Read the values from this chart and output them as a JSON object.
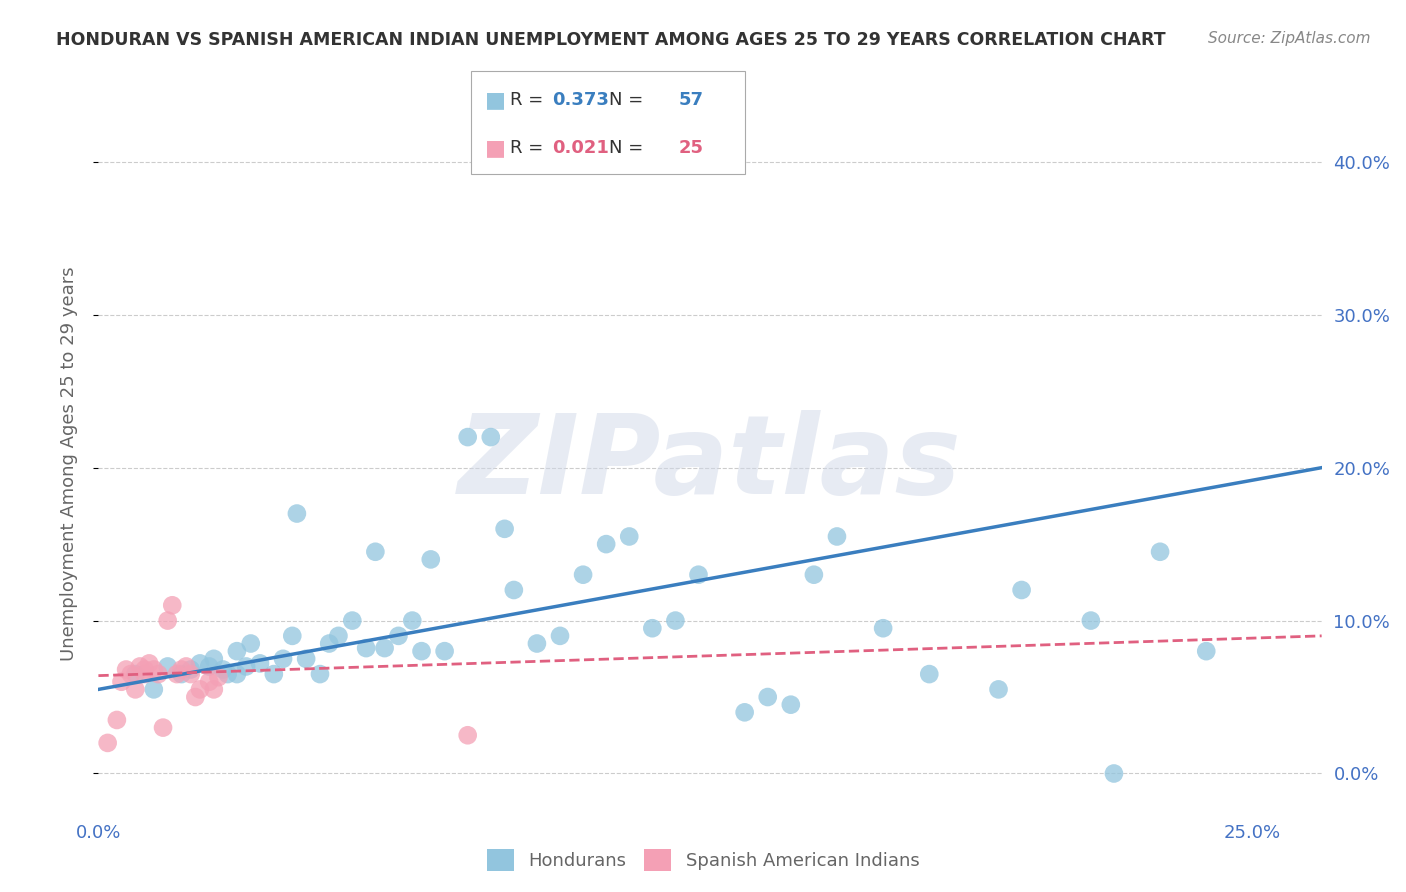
{
  "title": "HONDURAN VS SPANISH AMERICAN INDIAN UNEMPLOYMENT AMONG AGES 25 TO 29 YEARS CORRELATION CHART",
  "source": "Source: ZipAtlas.com",
  "ylabel": "Unemployment Among Ages 25 to 29 years",
  "xlim": [
    0.0,
    0.265
  ],
  "ylim": [
    -0.025,
    0.43
  ],
  "xlabel_ticks": [
    0.0,
    0.25
  ],
  "xlabel_labels": [
    "0.0%",
    "25.0%"
  ],
  "ylabel_ticks": [
    0.0,
    0.1,
    0.2,
    0.3,
    0.4
  ],
  "ylabel_labels": [
    "0.0%",
    "10.0%",
    "20.0%",
    "30.0%",
    "40.0%"
  ],
  "blue_color": "#92c5de",
  "blue_line_color": "#3a7ebf",
  "pink_color": "#f4a0b5",
  "pink_line_color": "#e06080",
  "watermark": "ZIPatlas",
  "blue_scatter_x": [
    0.008,
    0.012,
    0.015,
    0.018,
    0.02,
    0.022,
    0.024,
    0.025,
    0.027,
    0.028,
    0.03,
    0.03,
    0.032,
    0.033,
    0.035,
    0.038,
    0.04,
    0.042,
    0.043,
    0.045,
    0.048,
    0.05,
    0.052,
    0.055,
    0.058,
    0.06,
    0.062,
    0.065,
    0.068,
    0.07,
    0.072,
    0.075,
    0.08,
    0.085,
    0.088,
    0.09,
    0.095,
    0.1,
    0.105,
    0.11,
    0.115,
    0.12,
    0.125,
    0.13,
    0.14,
    0.145,
    0.15,
    0.155,
    0.16,
    0.17,
    0.18,
    0.195,
    0.2,
    0.215,
    0.22,
    0.23,
    0.24
  ],
  "blue_scatter_y": [
    0.065,
    0.055,
    0.07,
    0.065,
    0.068,
    0.072,
    0.07,
    0.075,
    0.068,
    0.065,
    0.08,
    0.065,
    0.07,
    0.085,
    0.072,
    0.065,
    0.075,
    0.09,
    0.17,
    0.075,
    0.065,
    0.085,
    0.09,
    0.1,
    0.082,
    0.145,
    0.082,
    0.09,
    0.1,
    0.08,
    0.14,
    0.08,
    0.22,
    0.22,
    0.16,
    0.12,
    0.085,
    0.09,
    0.13,
    0.15,
    0.155,
    0.095,
    0.1,
    0.13,
    0.04,
    0.05,
    0.045,
    0.13,
    0.155,
    0.095,
    0.065,
    0.055,
    0.12,
    0.1,
    0.0,
    0.145,
    0.08
  ],
  "pink_scatter_x": [
    0.002,
    0.004,
    0.005,
    0.006,
    0.007,
    0.008,
    0.009,
    0.01,
    0.01,
    0.011,
    0.012,
    0.013,
    0.014,
    0.015,
    0.016,
    0.017,
    0.018,
    0.019,
    0.02,
    0.021,
    0.022,
    0.024,
    0.025,
    0.026,
    0.08
  ],
  "pink_scatter_y": [
    0.02,
    0.035,
    0.06,
    0.068,
    0.065,
    0.055,
    0.07,
    0.068,
    0.065,
    0.072,
    0.068,
    0.065,
    0.03,
    0.1,
    0.11,
    0.065,
    0.068,
    0.07,
    0.065,
    0.05,
    0.055,
    0.06,
    0.055,
    0.063,
    0.025
  ],
  "blue_line_x": [
    0.0,
    0.265
  ],
  "blue_line_y": [
    0.055,
    0.2
  ],
  "pink_line_x": [
    0.0,
    0.265
  ],
  "pink_line_y": [
    0.064,
    0.09
  ],
  "grid_color": "#cccccc",
  "bg_color": "#ffffff",
  "title_color": "#333333",
  "axis_label_color": "#666666",
  "right_tick_color": "#4472c4",
  "bottom_tick_color": "#4472c4",
  "legend_r1_val": "0.373",
  "legend_n1_val": "57",
  "legend_r2_val": "0.021",
  "legend_n2_val": "25"
}
